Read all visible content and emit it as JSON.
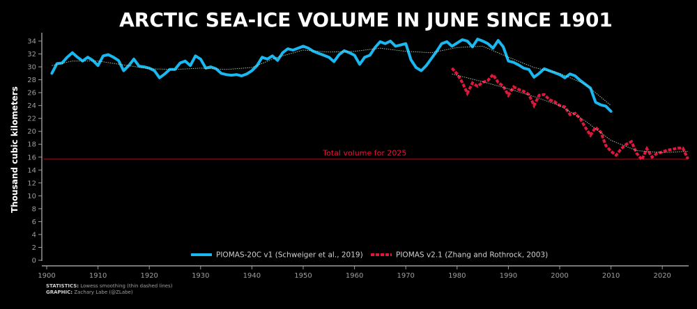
{
  "chart_data": {
    "type": "line",
    "title": "ARCTIC SEA-ICE VOLUME IN JUNE SINCE 1901",
    "ylabel": "Thousand cubic kilometers",
    "xlabel": "",
    "xlim": [
      1900,
      2025
    ],
    "ylim": [
      0,
      35
    ],
    "xticks": [
      1900,
      1910,
      1920,
      1930,
      1940,
      1950,
      1960,
      1970,
      1980,
      1990,
      2000,
      2010,
      2020
    ],
    "yticks": [
      0,
      2,
      4,
      6,
      8,
      10,
      12,
      14,
      16,
      18,
      20,
      22,
      24,
      26,
      28,
      30,
      32,
      34
    ],
    "legend_position": "bottom-center",
    "grid": false,
    "colors": {
      "series1": "#1ab8f0",
      "series2": "#e0173c",
      "reference": "#7a0f1e",
      "reference_label": "#e0173c",
      "smooth": "#b7d7b7"
    },
    "series": [
      {
        "name": "PIOMAS-20C v1 (Schweiger et al., 2019)",
        "style": "solid",
        "x": [
          1901,
          1902,
          1903,
          1904,
          1905,
          1906,
          1907,
          1908,
          1909,
          1910,
          1911,
          1912,
          1913,
          1914,
          1915,
          1916,
          1917,
          1918,
          1919,
          1920,
          1921,
          1922,
          1923,
          1924,
          1925,
          1926,
          1927,
          1928,
          1929,
          1930,
          1931,
          1932,
          1933,
          1934,
          1935,
          1936,
          1937,
          1938,
          1939,
          1940,
          1941,
          1942,
          1943,
          1944,
          1945,
          1946,
          1947,
          1948,
          1949,
          1950,
          1951,
          1952,
          1953,
          1954,
          1955,
          1956,
          1957,
          1958,
          1959,
          1960,
          1961,
          1962,
          1963,
          1964,
          1965,
          1966,
          1967,
          1968,
          1969,
          1970,
          1971,
          1972,
          1973,
          1974,
          1975,
          1976,
          1977,
          1978,
          1979,
          1980,
          1981,
          1982,
          1983,
          1984,
          1985,
          1986,
          1987,
          1988,
          1989,
          1990,
          1991,
          1992,
          1993,
          1994,
          1995,
          1996,
          1997,
          1998,
          1999,
          2000,
          2001,
          2002,
          2003,
          2004,
          2005,
          2006,
          2007,
          2008,
          2009,
          2010
        ],
        "values": [
          29.0,
          30.5,
          30.6,
          31.5,
          32.2,
          31.5,
          30.9,
          31.5,
          31.0,
          30.2,
          31.7,
          31.9,
          31.5,
          31.0,
          29.4,
          30.2,
          31.2,
          30.1,
          30.0,
          29.8,
          29.4,
          28.3,
          28.9,
          29.6,
          29.6,
          30.6,
          30.9,
          30.2,
          31.7,
          31.2,
          29.8,
          30.0,
          29.7,
          29.0,
          28.8,
          28.7,
          28.8,
          28.6,
          28.9,
          29.4,
          30.2,
          31.5,
          31.2,
          31.7,
          31.0,
          32.2,
          32.8,
          32.6,
          32.9,
          33.2,
          32.9,
          32.4,
          32.1,
          31.8,
          31.5,
          30.8,
          31.9,
          32.5,
          32.2,
          31.8,
          30.4,
          31.5,
          31.8,
          33.0,
          33.9,
          33.6,
          34.0,
          33.2,
          33.4,
          33.6,
          31.1,
          29.9,
          29.4,
          30.2,
          31.3,
          32.4,
          33.6,
          33.9,
          33.2,
          33.7,
          34.2,
          34.0,
          33.1,
          34.3,
          34.0,
          33.6,
          32.9,
          34.1,
          33.1,
          30.9,
          30.7,
          30.3,
          29.8,
          29.6,
          28.4,
          29.0,
          29.7,
          29.4,
          29.1,
          28.8,
          28.3,
          28.9,
          28.6,
          27.9,
          27.3,
          26.7,
          24.5,
          24.1,
          23.9,
          23.1
        ]
      },
      {
        "name": "PIOMAS v2.1 (Zhang and Rothrock, 2003)",
        "style": "dashed",
        "x": [
          1979,
          1980,
          1981,
          1982,
          1983,
          1984,
          1985,
          1986,
          1987,
          1988,
          1989,
          1990,
          1991,
          1992,
          1993,
          1994,
          1995,
          1996,
          1997,
          1998,
          1999,
          2000,
          2001,
          2002,
          2003,
          2004,
          2005,
          2006,
          2007,
          2008,
          2009,
          2010,
          2011,
          2012,
          2013,
          2014,
          2015,
          2016,
          2017,
          2018,
          2019,
          2020,
          2021,
          2022,
          2023,
          2024,
          2025
        ],
        "values": [
          29.8,
          28.9,
          27.6,
          25.9,
          27.5,
          27.0,
          27.6,
          27.9,
          28.8,
          27.6,
          27.0,
          25.6,
          26.9,
          26.5,
          26.2,
          25.7,
          24.0,
          25.6,
          25.7,
          24.9,
          24.6,
          24.0,
          23.8,
          22.6,
          22.8,
          22.0,
          20.6,
          19.4,
          20.6,
          19.9,
          17.8,
          16.9,
          16.3,
          17.3,
          18.0,
          18.4,
          16.6,
          15.6,
          17.3,
          16.0,
          16.6,
          16.8,
          17.1,
          17.2,
          17.4,
          17.4,
          15.7
        ]
      }
    ],
    "smoothed": [
      {
        "of": "PIOMAS-20C v1 (Schweiger et al., 2019)",
        "x": [
          1901,
          1905,
          1910,
          1915,
          1920,
          1925,
          1930,
          1935,
          1940,
          1945,
          1950,
          1955,
          1960,
          1965,
          1970,
          1975,
          1980,
          1985,
          1990,
          1995,
          2000,
          2005,
          2010
        ],
        "values": [
          30.2,
          30.9,
          30.9,
          30.3,
          29.7,
          29.6,
          29.8,
          29.6,
          29.9,
          31.5,
          32.6,
          32.3,
          32.4,
          32.9,
          32.4,
          32.2,
          33.0,
          33.2,
          31.5,
          29.9,
          29.0,
          27.3,
          24.0
        ]
      },
      {
        "of": "PIOMAS v2.1 (Zhang and Rothrock, 2003)",
        "x": [
          1979,
          1985,
          1990,
          1995,
          2000,
          2005,
          2010,
          2015,
          2020,
          2025
        ],
        "values": [
          28.9,
          27.7,
          26.6,
          25.4,
          24.0,
          21.6,
          18.6,
          17.0,
          16.7,
          16.9
        ]
      }
    ],
    "reference_line": {
      "label": "Total volume for 2025",
      "value": 15.7
    }
  },
  "footer": {
    "stats_label": "STATISTICS:",
    "stats_text": " Lowess smoothing (thin dashed lines)",
    "graphic_label": "GRAPHIC:",
    "graphic_text": " Zachary Labe (@ZLabe)"
  }
}
